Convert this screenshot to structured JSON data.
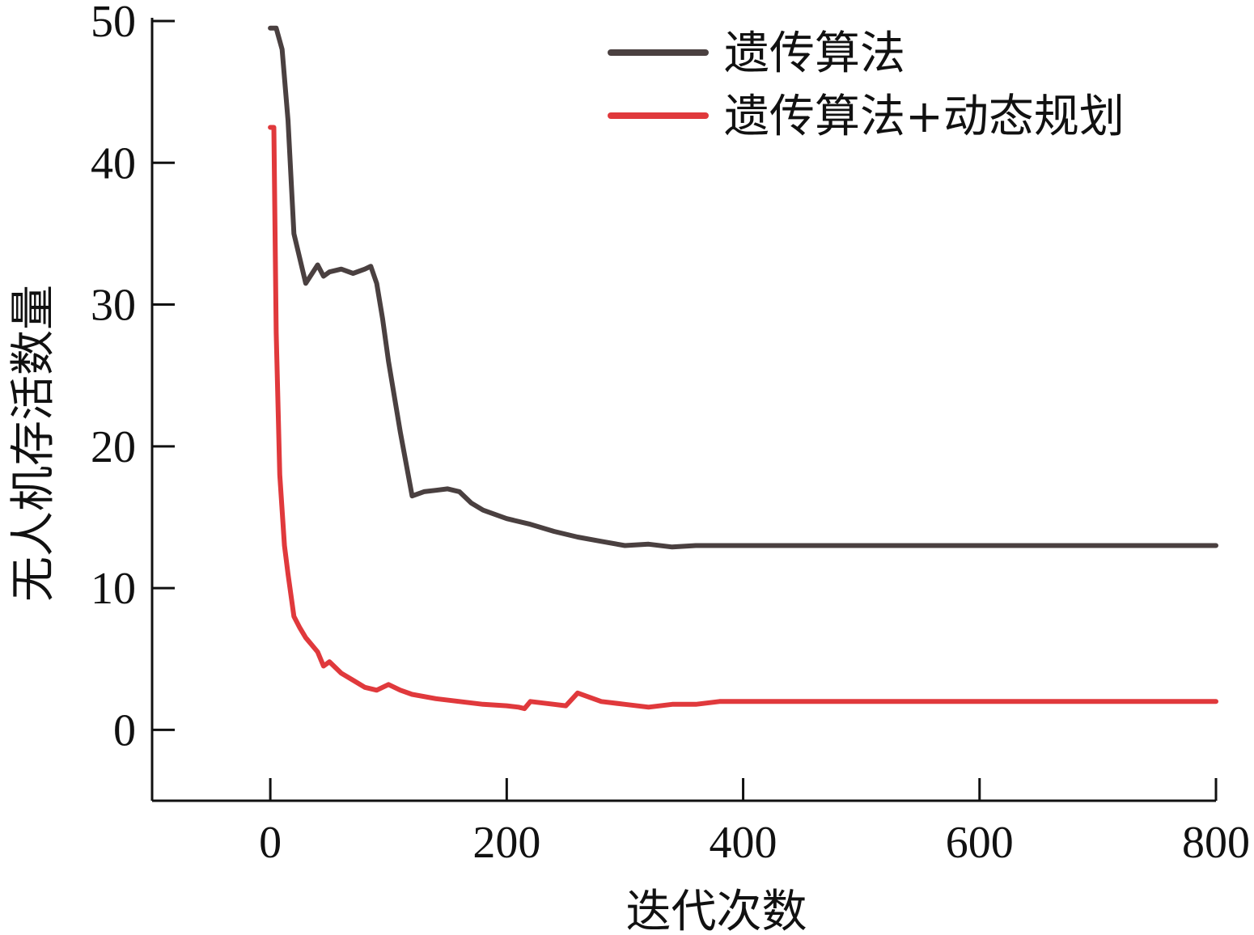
{
  "chart_data": {
    "type": "line",
    "title": "",
    "xlabel": "迭代次数",
    "ylabel": "无人机存活数量",
    "xlim": [
      -100,
      800
    ],
    "ylim": [
      -5,
      50
    ],
    "xticks": [
      0,
      200,
      400,
      600,
      800
    ],
    "yticks": [
      0,
      10,
      20,
      30,
      40,
      50
    ],
    "grid": false,
    "legend_position": "top-right",
    "series": [
      {
        "name": "遗传算法",
        "color": "#4a4040",
        "x": [
          0,
          5,
          10,
          15,
          20,
          30,
          40,
          45,
          50,
          60,
          70,
          80,
          85,
          90,
          95,
          100,
          110,
          120,
          130,
          140,
          150,
          160,
          170,
          180,
          200,
          220,
          240,
          260,
          280,
          300,
          320,
          340,
          360,
          400,
          500,
          600,
          700,
          800
        ],
        "y": [
          49.5,
          49.5,
          48,
          43,
          35,
          31.5,
          32.8,
          32,
          32.3,
          32.5,
          32.2,
          32.5,
          32.7,
          31.5,
          29,
          26,
          21,
          16.5,
          16.8,
          16.9,
          17,
          16.8,
          16,
          15.5,
          14.9,
          14.5,
          14,
          13.6,
          13.3,
          13,
          13.1,
          12.9,
          13,
          13,
          13,
          13,
          13,
          13
        ]
      },
      {
        "name": "遗传算法+动态规划",
        "color": "#e0393c",
        "x": [
          0,
          3,
          5,
          8,
          12,
          15,
          20,
          25,
          30,
          40,
          45,
          50,
          60,
          70,
          80,
          90,
          100,
          110,
          120,
          140,
          160,
          180,
          200,
          210,
          215,
          220,
          240,
          250,
          260,
          280,
          300,
          320,
          340,
          360,
          380,
          400,
          450,
          500,
          600,
          700,
          800
        ],
        "y": [
          42.5,
          42.5,
          28,
          18,
          13,
          11,
          8,
          7.2,
          6.5,
          5.5,
          4.5,
          4.8,
          4,
          3.5,
          3,
          2.8,
          3.2,
          2.8,
          2.5,
          2.2,
          2,
          1.8,
          1.7,
          1.6,
          1.5,
          2,
          1.8,
          1.7,
          2.6,
          2,
          1.8,
          1.6,
          1.8,
          1.8,
          2,
          2,
          2,
          2,
          2,
          2,
          2
        ]
      }
    ]
  }
}
